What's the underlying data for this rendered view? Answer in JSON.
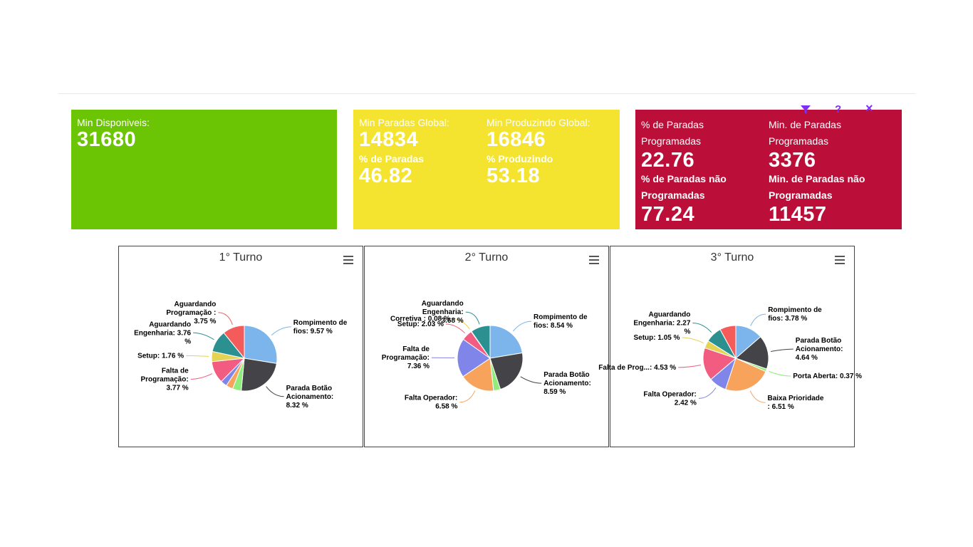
{
  "cards": {
    "green": {
      "label": "Min Disponiveis:",
      "value": "31680",
      "color": "#6cc504"
    },
    "yellow": {
      "color": "#f4e430",
      "paradas_global_label": "Min Paradas Global:",
      "paradas_global_value": "14834",
      "produzindo_global_label": "Min Produzindo Global:",
      "produzindo_global_value": "16846",
      "pct_paradas_label": "% de Paradas",
      "pct_paradas_value": "46.82",
      "pct_produzindo_label": "% Produzindo",
      "pct_produzindo_value": "53.18"
    },
    "red": {
      "color": "#bb0e38",
      "pct_prog_label_1": "% de Paradas",
      "pct_prog_label_2": "Programadas",
      "pct_prog_value": "22.76",
      "min_prog_label_1": "Min. de Paradas",
      "min_prog_label_2": "Programadas",
      "min_prog_value": "3376",
      "pct_nprog_label_1": "% de Paradas não",
      "pct_nprog_label_2": "Programadas",
      "pct_nprog_value": "77.24",
      "min_nprog_label_1": "Min. de Paradas não",
      "min_nprog_label_2": "Programadas",
      "min_nprog_value": "11457"
    }
  },
  "toolbar": {
    "filter_icon": "filter-icon",
    "help_label": "?",
    "close_label": "×",
    "color": "#7b2ff7"
  },
  "chart_data": [
    {
      "type": "pie",
      "title": "1° Turno",
      "slices": [
        {
          "name": "Rompimento de fios",
          "value": 9.57,
          "color": "#7cb5ec",
          "label": [
            "Rompimento de",
            "fios: 9.57 %"
          ]
        },
        {
          "name": "Parada Botão Acionamento",
          "value": 8.32,
          "color": "#434348",
          "label": [
            "Parada Botão",
            "Acionamento:",
            "8.32 %"
          ]
        },
        {
          "name": "",
          "value": 1.5,
          "color": "#90ed7d",
          "label": []
        },
        {
          "name": "",
          "value": 1.2,
          "color": "#f7a35c",
          "label": []
        },
        {
          "name": "",
          "value": 1.1,
          "color": "#8085e9",
          "label": []
        },
        {
          "name": "Falta de Programação",
          "value": 3.77,
          "color": "#f15c80",
          "label": [
            "Falta de",
            "Programação:",
            "3.77 %"
          ]
        },
        {
          "name": "Setup",
          "value": 1.76,
          "color": "#e4d354",
          "label": [
            "Setup: 1.76 %"
          ]
        },
        {
          "name": "Aguardando Engenharia",
          "value": 3.76,
          "color": "#2b908f",
          "label": [
            "Aguardando",
            "Engenharia: 3.76",
            "%"
          ]
        },
        {
          "name": "Aguardando Programação",
          "value": 3.75,
          "color": "#f45b5b",
          "label": [
            "Aguardando",
            "Programação :",
            "3.75 %"
          ]
        }
      ]
    },
    {
      "type": "pie",
      "title": "2° Turno",
      "slices": [
        {
          "name": "Rompimento de fios",
          "value": 8.54,
          "color": "#7cb5ec",
          "label": [
            "Rompimento de",
            "fios: 8.54 %"
          ]
        },
        {
          "name": "Parada Botão Acionamento",
          "value": 8.59,
          "color": "#434348",
          "label": [
            "Parada Botão",
            "Acionamento:",
            "8.59 %"
          ]
        },
        {
          "name": "",
          "value": 1.3,
          "color": "#90ed7d",
          "label": []
        },
        {
          "name": "Falta Operador",
          "value": 6.58,
          "color": "#f7a35c",
          "label": [
            "Falta Operador:",
            "6.58 %"
          ]
        },
        {
          "name": "Falta de Programação",
          "value": 7.36,
          "color": "#8085e9",
          "label": [
            "Falta de",
            "Programação:",
            "7.36 %"
          ]
        },
        {
          "name": "Setup",
          "value": 2.03,
          "color": "#f15c80",
          "label": [
            "Setup: 2.03 %"
          ]
        },
        {
          "name": "Corretiva",
          "value": 0.08,
          "color": "#e4d354",
          "label": [
            "Corretiva : 0.08 %"
          ]
        },
        {
          "name": "Aguardando Engenharia",
          "value": 3.68,
          "color": "#2b908f",
          "label": [
            "Aguardando",
            "Engenharia:",
            "3.68 %"
          ]
        }
      ]
    },
    {
      "type": "pie",
      "title": "3° Turno",
      "slices": [
        {
          "name": "Rompimento de fios",
          "value": 3.78,
          "color": "#7cb5ec",
          "label": [
            "Rompimento de",
            "fios: 3.78 %"
          ]
        },
        {
          "name": "Parada Botão Acionamento",
          "value": 4.64,
          "color": "#434348",
          "label": [
            "Parada Botão",
            "Acionamento:",
            "4.64 %"
          ]
        },
        {
          "name": "Porta Aberta",
          "value": 0.37,
          "color": "#90ed7d",
          "label": [
            "Porta Aberta: 0.37 %"
          ]
        },
        {
          "name": "Baixa Prioridade",
          "value": 6.51,
          "color": "#f7a35c",
          "label": [
            "Baixa Prioridade",
            ": 6.51 %"
          ]
        },
        {
          "name": "Falta Operador",
          "value": 2.42,
          "color": "#8085e9",
          "label": [
            "Falta Operador:",
            "2.42 %"
          ]
        },
        {
          "name": "Falta de Prog...",
          "value": 4.53,
          "color": "#f15c80",
          "label": [
            "Falta de Prog...: 4.53 %"
          ]
        },
        {
          "name": "Setup",
          "value": 1.05,
          "color": "#e4d354",
          "label": [
            "Setup: 1.05 %"
          ]
        },
        {
          "name": "Aguardando Engenharia",
          "value": 2.27,
          "color": "#2b908f",
          "label": [
            "Aguardando",
            "Engenharia: 2.27",
            "%"
          ]
        },
        {
          "name": "",
          "value": 2.2,
          "color": "#f45b5b",
          "label": []
        }
      ]
    }
  ]
}
